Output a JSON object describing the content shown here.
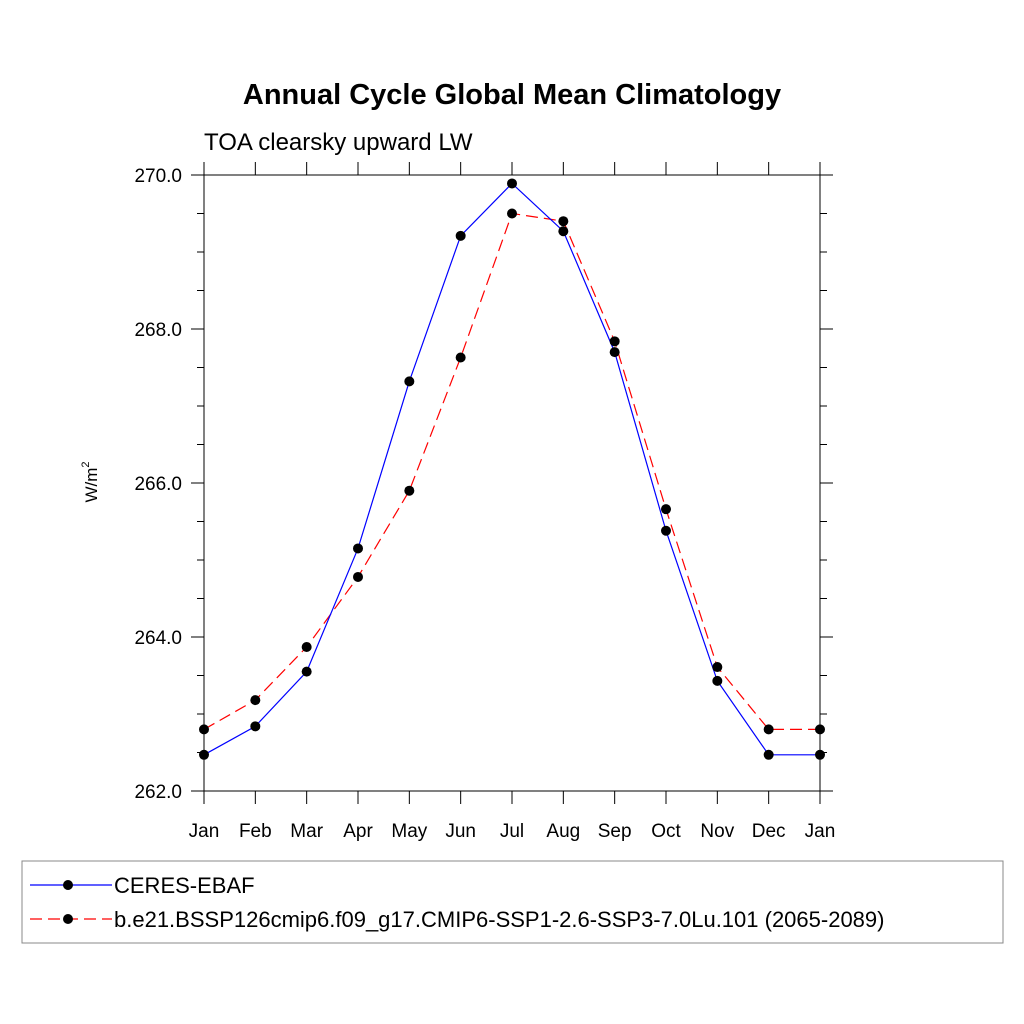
{
  "chart_data": {
    "type": "line",
    "title": "Annual Cycle Global Mean Climatology",
    "subtitle": "TOA clearsky upward LW",
    "xlabel": "",
    "ylabel": "W/m",
    "ylabel_superscript": "2",
    "categories": [
      "Jan",
      "Feb",
      "Mar",
      "Apr",
      "May",
      "Jun",
      "Jul",
      "Aug",
      "Sep",
      "Oct",
      "Nov",
      "Dec",
      "Jan"
    ],
    "ylim": [
      262.0,
      270.0
    ],
    "yticks": [
      "262.0",
      "264.0",
      "266.0",
      "268.0",
      "270.0"
    ],
    "grid": false,
    "legend_position": "bottom",
    "series": [
      {
        "name": "CERES-EBAF",
        "color": "#0000ff",
        "dash": "solid",
        "values": [
          262.47,
          262.84,
          263.55,
          265.15,
          267.32,
          269.21,
          269.89,
          269.27,
          267.7,
          265.38,
          263.43,
          262.47,
          262.47
        ]
      },
      {
        "name": "b.e21.BSSP126cmip6.f09_g17.CMIP6-SSP1-2.6-SSP3-7.0Lu.101 (2065-2089)",
        "color": "#ff0000",
        "dash": "dashed",
        "values": [
          262.8,
          263.18,
          263.87,
          264.78,
          265.9,
          267.63,
          269.5,
          269.4,
          267.84,
          265.66,
          263.61,
          262.8,
          262.8
        ]
      }
    ]
  }
}
